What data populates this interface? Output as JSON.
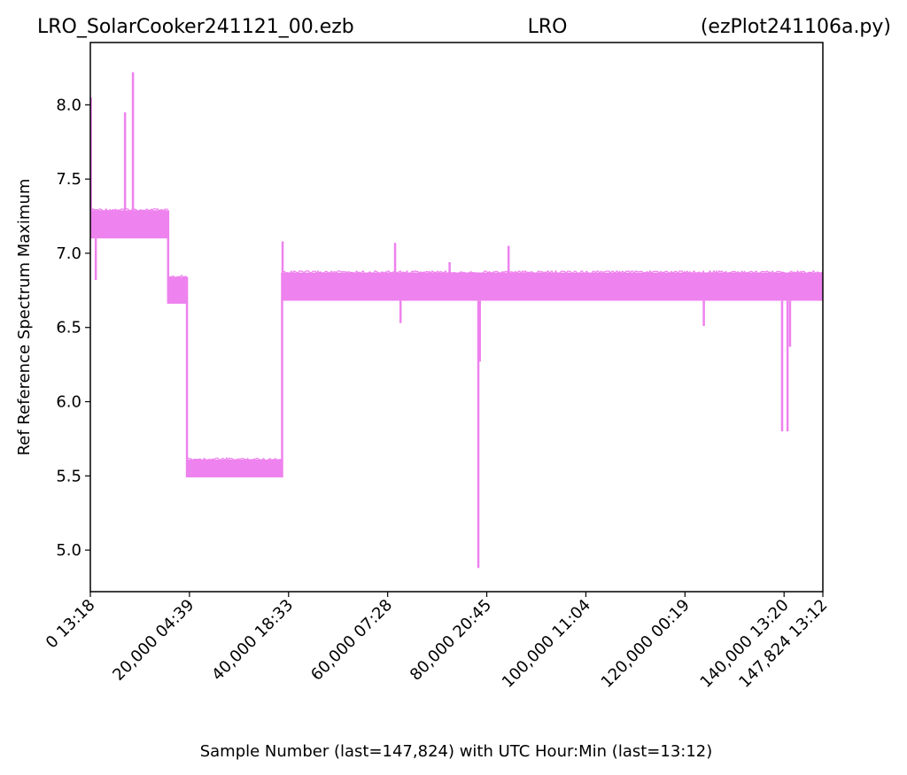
{
  "chart_data": {
    "type": "line",
    "title_left": "LRO_SolarCooker241121_00.ezb",
    "title_center": "LRO",
    "title_right": "(ezPlot241106a.py)",
    "xlabel": "Sample Number (last=147,824) with UTC Hour:Min (last=13:12)",
    "ylabel": "Ref Reference Spectrum Maximum",
    "xlim": [
      0,
      147824
    ],
    "ylim": [
      4.72,
      8.42
    ],
    "grid": false,
    "line_color": "#ee82ee",
    "x_ticks": [
      {
        "value": 0,
        "label": "0  13:18"
      },
      {
        "value": 20000,
        "label": "20,000  04:39"
      },
      {
        "value": 40000,
        "label": "40,000  18:33"
      },
      {
        "value": 60000,
        "label": "60,000  07:28"
      },
      {
        "value": 80000,
        "label": "80,000  20:45"
      },
      {
        "value": 100000,
        "label": "100,000  11:04"
      },
      {
        "value": 120000,
        "label": "120,000  00:19"
      },
      {
        "value": 140000,
        "label": "140,000  13:20"
      },
      {
        "value": 147824,
        "label": "147,824  13:12"
      }
    ],
    "y_ticks": [
      {
        "value": 5.0,
        "label": "5.0"
      },
      {
        "value": 5.5,
        "label": "5.5"
      },
      {
        "value": 6.0,
        "label": "6.0"
      },
      {
        "value": 6.5,
        "label": "6.5"
      },
      {
        "value": 7.0,
        "label": "7.0"
      },
      {
        "value": 7.5,
        "label": "7.5"
      },
      {
        "value": 8.0,
        "label": "8.0"
      }
    ],
    "series": [
      {
        "segments": [
          {
            "x0": 0,
            "x1": 15700,
            "low": 7.1,
            "high": 7.29
          },
          {
            "x0": 15700,
            "x1": 19500,
            "low": 6.66,
            "high": 6.84
          },
          {
            "x0": 19500,
            "x1": 38700,
            "low": 5.49,
            "high": 5.61
          },
          {
            "x0": 38700,
            "x1": 147824,
            "low": 6.68,
            "high": 6.87
          }
        ],
        "spikes": [
          {
            "x": 100,
            "y": 8.05
          },
          {
            "x": 1100,
            "y": 6.82
          },
          {
            "x": 7000,
            "y": 7.95
          },
          {
            "x": 8600,
            "y": 8.22
          },
          {
            "x": 38800,
            "y": 7.08
          },
          {
            "x": 61500,
            "y": 7.07
          },
          {
            "x": 62600,
            "y": 6.53
          },
          {
            "x": 72500,
            "y": 6.94
          },
          {
            "x": 78300,
            "y": 4.88
          },
          {
            "x": 78600,
            "y": 6.27
          },
          {
            "x": 84400,
            "y": 7.05
          },
          {
            "x": 123800,
            "y": 6.51
          },
          {
            "x": 139600,
            "y": 5.8
          },
          {
            "x": 140700,
            "y": 5.8
          },
          {
            "x": 141200,
            "y": 6.37
          }
        ]
      }
    ]
  }
}
